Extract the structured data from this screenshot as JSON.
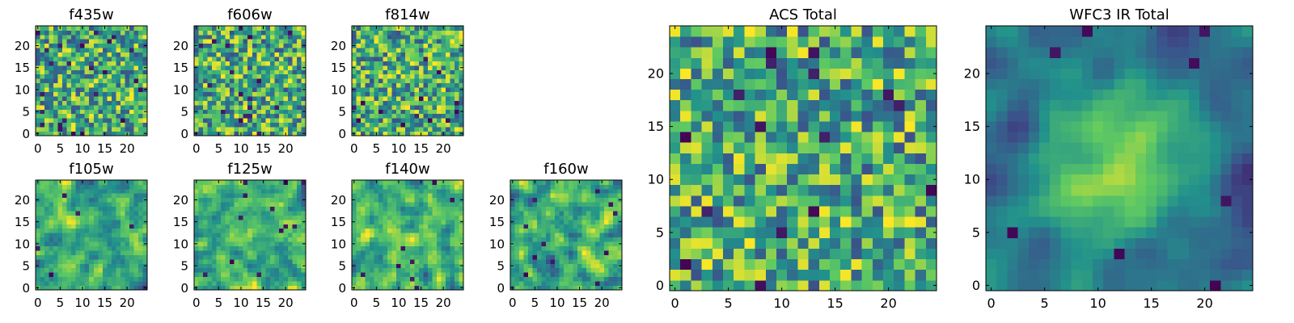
{
  "colormap": {
    "name": "viridis",
    "stops": [
      "#440154",
      "#3b528b",
      "#21918c",
      "#5ec962",
      "#fde725"
    ]
  },
  "chart_data": [
    {
      "type": "heatmap",
      "title": "f435w",
      "xlabel": "",
      "ylabel": "",
      "shape": [
        25,
        25
      ],
      "xticks": [
        0,
        5,
        10,
        15,
        20
      ],
      "yticks": [
        0,
        5,
        10,
        15,
        20
      ],
      "value_range": [
        0,
        1
      ],
      "seed": 11,
      "smoothing": 0,
      "dark_fraction": 0.03
    },
    {
      "type": "heatmap",
      "title": "f606w",
      "xlabel": "",
      "ylabel": "",
      "shape": [
        25,
        25
      ],
      "xticks": [
        0,
        5,
        10,
        15,
        20
      ],
      "yticks": [
        0,
        5,
        10,
        15,
        20
      ],
      "value_range": [
        0,
        1
      ],
      "seed": 23,
      "smoothing": 0,
      "dark_fraction": 0.03
    },
    {
      "type": "heatmap",
      "title": "f814w",
      "xlabel": "",
      "ylabel": "",
      "shape": [
        25,
        25
      ],
      "xticks": [
        0,
        5,
        10,
        15,
        20
      ],
      "yticks": [
        0,
        5,
        10,
        15,
        20
      ],
      "value_range": [
        0,
        1
      ],
      "seed": 37,
      "smoothing": 0,
      "dark_fraction": 0.03
    },
    {
      "type": "heatmap",
      "title": "f105w",
      "xlabel": "",
      "ylabel": "",
      "shape": [
        25,
        25
      ],
      "xticks": [
        0,
        5,
        10,
        15,
        20
      ],
      "yticks": [
        0,
        5,
        10,
        15,
        20
      ],
      "value_range": [
        0,
        1
      ],
      "seed": 41,
      "smoothing": 1,
      "dark_fraction": 0.02
    },
    {
      "type": "heatmap",
      "title": "f125w",
      "xlabel": "",
      "ylabel": "",
      "shape": [
        25,
        25
      ],
      "xticks": [
        0,
        5,
        10,
        15,
        20
      ],
      "yticks": [
        0,
        5,
        10,
        15,
        20
      ],
      "value_range": [
        0,
        1
      ],
      "seed": 53,
      "smoothing": 1,
      "dark_fraction": 0.02
    },
    {
      "type": "heatmap",
      "title": "f140w",
      "xlabel": "",
      "ylabel": "",
      "shape": [
        25,
        25
      ],
      "xticks": [
        0,
        5,
        10,
        15,
        20
      ],
      "yticks": [
        0,
        5,
        10,
        15,
        20
      ],
      "value_range": [
        0,
        1
      ],
      "seed": 67,
      "smoothing": 1,
      "dark_fraction": 0.02
    },
    {
      "type": "heatmap",
      "title": "f160w",
      "xlabel": "",
      "ylabel": "",
      "shape": [
        25,
        25
      ],
      "xticks": [
        0,
        5,
        10,
        15,
        20
      ],
      "yticks": [
        0,
        5,
        10,
        15,
        20
      ],
      "value_range": [
        0,
        1
      ],
      "seed": 79,
      "smoothing": 1,
      "dark_fraction": 0.02
    },
    {
      "type": "heatmap",
      "title": "ACS Total",
      "xlabel": "",
      "ylabel": "",
      "shape": [
        25,
        25
      ],
      "xticks": [
        0,
        5,
        10,
        15,
        20
      ],
      "yticks": [
        0,
        5,
        10,
        15,
        20
      ],
      "value_range": [
        0,
        1
      ],
      "seed": 97,
      "smoothing": 0,
      "dark_fraction": 0.02
    },
    {
      "type": "heatmap",
      "title": "WFC3 IR Total",
      "xlabel": "",
      "ylabel": "",
      "shape": [
        25,
        25
      ],
      "xticks": [
        0,
        5,
        10,
        15,
        20
      ],
      "yticks": [
        0,
        5,
        10,
        15,
        20
      ],
      "value_range": [
        0,
        1
      ],
      "seed": 113,
      "smoothing": 2,
      "dark_fraction": 0.02,
      "central_peak": {
        "x": 12,
        "y": 11
      }
    }
  ]
}
